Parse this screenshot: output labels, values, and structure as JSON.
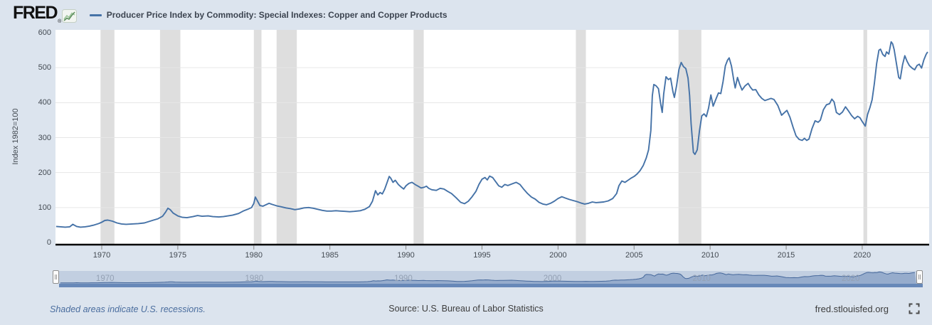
{
  "header": {
    "logo": "FRED",
    "reg": "®",
    "series_title": "Producer Price Index by Commodity: Special Indexes: Copper and Copper Products"
  },
  "footer": {
    "note": "Shaded areas indicate U.S. recessions.",
    "source": "Source: U.S. Bureau of Labor Statistics",
    "site": "fred.stlouisfed.org"
  },
  "slider": {
    "decade_labels": [
      "1970",
      "1980",
      "1990",
      "2000",
      "2010",
      "2020"
    ]
  },
  "colors": {
    "line": "#4572a7",
    "recession_band": "#dedede",
    "plot_background": "#ffffff",
    "page_background": "#dce4ee",
    "gridline": "#e6e6e6",
    "axis_line": "#000000",
    "tick": "#888888",
    "mini_area_fill": "#8ba3c7",
    "mini_line": "#46689b"
  },
  "chart_data": {
    "type": "line",
    "title": "Producer Price Index by Commodity: Special Indexes: Copper and Copper Products",
    "xlabel": "",
    "ylabel": "Index 1982=100",
    "xlim": [
      1966.96,
      2024.4
    ],
    "ylim": [
      0,
      600
    ],
    "y_ticks": [
      0,
      100,
      200,
      300,
      400,
      500,
      600
    ],
    "x_ticks": [
      1970,
      1975,
      1980,
      1985,
      1990,
      1995,
      2000,
      2005,
      2010,
      2015,
      2020
    ],
    "grid": "horizontal",
    "legend_position": "top-left",
    "recessions": [
      [
        1969.92,
        1970.83
      ],
      [
        1973.83,
        1975.17
      ],
      [
        1980.0,
        1980.5
      ],
      [
        1981.5,
        1982.83
      ],
      [
        1990.5,
        1991.17
      ],
      [
        2001.17,
        2001.83
      ],
      [
        2007.92,
        2009.42
      ],
      [
        2020.08,
        2020.33
      ]
    ],
    "series": [
      {
        "name": "Producer Price Index by Commodity: Special Indexes: Copper and Copper Products",
        "points": [
          [
            1967.0,
            46
          ],
          [
            1967.3,
            45
          ],
          [
            1967.6,
            44
          ],
          [
            1967.9,
            45
          ],
          [
            1968.1,
            52
          ],
          [
            1968.35,
            46
          ],
          [
            1968.6,
            44
          ],
          [
            1968.9,
            45
          ],
          [
            1969.2,
            47
          ],
          [
            1969.5,
            50
          ],
          [
            1969.8,
            54
          ],
          [
            1970.0,
            58
          ],
          [
            1970.2,
            63
          ],
          [
            1970.4,
            64
          ],
          [
            1970.7,
            61
          ],
          [
            1971.0,
            56
          ],
          [
            1971.3,
            53
          ],
          [
            1971.6,
            52
          ],
          [
            1972.0,
            53
          ],
          [
            1972.4,
            54
          ],
          [
            1972.8,
            56
          ],
          [
            1973.1,
            60
          ],
          [
            1973.4,
            64
          ],
          [
            1973.7,
            68
          ],
          [
            1974.0,
            75
          ],
          [
            1974.2,
            87
          ],
          [
            1974.35,
            98
          ],
          [
            1974.5,
            94
          ],
          [
            1974.7,
            84
          ],
          [
            1975.0,
            76
          ],
          [
            1975.3,
            72
          ],
          [
            1975.6,
            71
          ],
          [
            1976.0,
            74
          ],
          [
            1976.3,
            77
          ],
          [
            1976.6,
            75
          ],
          [
            1977.0,
            76
          ],
          [
            1977.3,
            74
          ],
          [
            1977.7,
            73
          ],
          [
            1978.0,
            74
          ],
          [
            1978.3,
            76
          ],
          [
            1978.6,
            78
          ],
          [
            1979.0,
            83
          ],
          [
            1979.3,
            90
          ],
          [
            1979.6,
            95
          ],
          [
            1979.85,
            100
          ],
          [
            1980.0,
            112
          ],
          [
            1980.1,
            130
          ],
          [
            1980.25,
            118
          ],
          [
            1980.4,
            106
          ],
          [
            1980.6,
            104
          ],
          [
            1980.8,
            108
          ],
          [
            1981.0,
            112
          ],
          [
            1981.2,
            109
          ],
          [
            1981.5,
            105
          ],
          [
            1981.8,
            102
          ],
          [
            1982.1,
            99
          ],
          [
            1982.4,
            97
          ],
          [
            1982.7,
            94
          ],
          [
            1983.0,
            96
          ],
          [
            1983.3,
            99
          ],
          [
            1983.6,
            100
          ],
          [
            1983.9,
            98
          ],
          [
            1984.2,
            95
          ],
          [
            1984.5,
            92
          ],
          [
            1984.8,
            90
          ],
          [
            1985.1,
            90
          ],
          [
            1985.4,
            91
          ],
          [
            1985.7,
            90
          ],
          [
            1986.0,
            89
          ],
          [
            1986.3,
            88
          ],
          [
            1986.6,
            89
          ],
          [
            1987.0,
            91
          ],
          [
            1987.3,
            95
          ],
          [
            1987.6,
            103
          ],
          [
            1987.8,
            118
          ],
          [
            1988.0,
            148
          ],
          [
            1988.15,
            136
          ],
          [
            1988.3,
            143
          ],
          [
            1988.45,
            139
          ],
          [
            1988.6,
            152
          ],
          [
            1988.75,
            170
          ],
          [
            1988.9,
            189
          ],
          [
            1989.0,
            184
          ],
          [
            1989.15,
            172
          ],
          [
            1989.3,
            178
          ],
          [
            1989.5,
            166
          ],
          [
            1989.7,
            158
          ],
          [
            1989.85,
            153
          ],
          [
            1990.0,
            162
          ],
          [
            1990.2,
            169
          ],
          [
            1990.4,
            172
          ],
          [
            1990.6,
            166
          ],
          [
            1990.8,
            161
          ],
          [
            1991.0,
            156
          ],
          [
            1991.2,
            158
          ],
          [
            1991.35,
            161
          ],
          [
            1991.5,
            155
          ],
          [
            1991.7,
            151
          ],
          [
            1992.0,
            149
          ],
          [
            1992.25,
            155
          ],
          [
            1992.5,
            153
          ],
          [
            1992.75,
            146
          ],
          [
            1993.0,
            140
          ],
          [
            1993.3,
            128
          ],
          [
            1993.6,
            115
          ],
          [
            1993.85,
            111
          ],
          [
            1994.1,
            118
          ],
          [
            1994.35,
            131
          ],
          [
            1994.6,
            146
          ],
          [
            1994.8,
            166
          ],
          [
            1995.0,
            181
          ],
          [
            1995.2,
            186
          ],
          [
            1995.35,
            179
          ],
          [
            1995.5,
            190
          ],
          [
            1995.7,
            186
          ],
          [
            1995.9,
            174
          ],
          [
            1996.1,
            162
          ],
          [
            1996.3,
            158
          ],
          [
            1996.5,
            166
          ],
          [
            1996.7,
            163
          ],
          [
            1997.0,
            168
          ],
          [
            1997.25,
            172
          ],
          [
            1997.5,
            166
          ],
          [
            1997.75,
            152
          ],
          [
            1998.0,
            140
          ],
          [
            1998.25,
            130
          ],
          [
            1998.5,
            124
          ],
          [
            1998.75,
            115
          ],
          [
            1999.0,
            110
          ],
          [
            1999.25,
            108
          ],
          [
            1999.5,
            112
          ],
          [
            1999.75,
            118
          ],
          [
            2000.0,
            126
          ],
          [
            2000.25,
            131
          ],
          [
            2000.5,
            127
          ],
          [
            2000.75,
            123
          ],
          [
            2001.0,
            120
          ],
          [
            2001.25,
            117
          ],
          [
            2001.5,
            113
          ],
          [
            2001.75,
            110
          ],
          [
            2002.0,
            112
          ],
          [
            2002.25,
            116
          ],
          [
            2002.5,
            114
          ],
          [
            2002.75,
            115
          ],
          [
            2003.0,
            116
          ],
          [
            2003.3,
            119
          ],
          [
            2003.6,
            126
          ],
          [
            2003.85,
            140
          ],
          [
            2004.0,
            162
          ],
          [
            2004.2,
            176
          ],
          [
            2004.4,
            172
          ],
          [
            2004.6,
            178
          ],
          [
            2004.8,
            184
          ],
          [
            2005.0,
            189
          ],
          [
            2005.2,
            196
          ],
          [
            2005.4,
            206
          ],
          [
            2005.6,
            220
          ],
          [
            2005.8,
            242
          ],
          [
            2005.95,
            265
          ],
          [
            2006.1,
            320
          ],
          [
            2006.2,
            420
          ],
          [
            2006.3,
            452
          ],
          [
            2006.45,
            448
          ],
          [
            2006.6,
            440
          ],
          [
            2006.75,
            396
          ],
          [
            2006.85,
            372
          ],
          [
            2006.95,
            425
          ],
          [
            2007.1,
            474
          ],
          [
            2007.25,
            466
          ],
          [
            2007.4,
            470
          ],
          [
            2007.55,
            432
          ],
          [
            2007.65,
            415
          ],
          [
            2007.8,
            450
          ],
          [
            2007.95,
            495
          ],
          [
            2008.1,
            515
          ],
          [
            2008.25,
            503
          ],
          [
            2008.4,
            498
          ],
          [
            2008.55,
            470
          ],
          [
            2008.65,
            420
          ],
          [
            2008.75,
            340
          ],
          [
            2008.9,
            258
          ],
          [
            2009.0,
            252
          ],
          [
            2009.15,
            265
          ],
          [
            2009.3,
            320
          ],
          [
            2009.45,
            362
          ],
          [
            2009.6,
            368
          ],
          [
            2009.75,
            360
          ],
          [
            2009.9,
            385
          ],
          [
            2010.05,
            422
          ],
          [
            2010.2,
            390
          ],
          [
            2010.4,
            412
          ],
          [
            2010.55,
            428
          ],
          [
            2010.7,
            426
          ],
          [
            2010.85,
            460
          ],
          [
            2011.0,
            505
          ],
          [
            2011.15,
            522
          ],
          [
            2011.25,
            528
          ],
          [
            2011.4,
            505
          ],
          [
            2011.55,
            465
          ],
          [
            2011.65,
            442
          ],
          [
            2011.8,
            472
          ],
          [
            2011.95,
            452
          ],
          [
            2012.1,
            436
          ],
          [
            2012.3,
            448
          ],
          [
            2012.5,
            455
          ],
          [
            2012.65,
            444
          ],
          [
            2012.8,
            436
          ],
          [
            2013.0,
            437
          ],
          [
            2013.2,
            422
          ],
          [
            2013.4,
            412
          ],
          [
            2013.6,
            406
          ],
          [
            2013.8,
            409
          ],
          [
            2014.0,
            412
          ],
          [
            2014.2,
            409
          ],
          [
            2014.45,
            392
          ],
          [
            2014.7,
            364
          ],
          [
            2014.9,
            372
          ],
          [
            2015.05,
            378
          ],
          [
            2015.25,
            358
          ],
          [
            2015.45,
            330
          ],
          [
            2015.65,
            305
          ],
          [
            2015.85,
            295
          ],
          [
            2016.05,
            292
          ],
          [
            2016.2,
            298
          ],
          [
            2016.35,
            292
          ],
          [
            2016.5,
            296
          ],
          [
            2016.7,
            326
          ],
          [
            2016.9,
            348
          ],
          [
            2017.1,
            344
          ],
          [
            2017.25,
            350
          ],
          [
            2017.45,
            380
          ],
          [
            2017.65,
            394
          ],
          [
            2017.85,
            397
          ],
          [
            2018.0,
            410
          ],
          [
            2018.15,
            402
          ],
          [
            2018.3,
            372
          ],
          [
            2018.5,
            366
          ],
          [
            2018.7,
            373
          ],
          [
            2018.9,
            388
          ],
          [
            2019.1,
            376
          ],
          [
            2019.3,
            363
          ],
          [
            2019.5,
            354
          ],
          [
            2019.7,
            361
          ],
          [
            2019.85,
            357
          ],
          [
            2020.0,
            346
          ],
          [
            2020.2,
            333
          ],
          [
            2020.35,
            366
          ],
          [
            2020.5,
            385
          ],
          [
            2020.65,
            408
          ],
          [
            2020.8,
            455
          ],
          [
            2020.95,
            512
          ],
          [
            2021.1,
            550
          ],
          [
            2021.2,
            553
          ],
          [
            2021.35,
            538
          ],
          [
            2021.5,
            532
          ],
          [
            2021.6,
            545
          ],
          [
            2021.75,
            539
          ],
          [
            2021.9,
            574
          ],
          [
            2022.0,
            568
          ],
          [
            2022.1,
            552
          ],
          [
            2022.25,
            512
          ],
          [
            2022.4,
            472
          ],
          [
            2022.5,
            468
          ],
          [
            2022.65,
            508
          ],
          [
            2022.8,
            534
          ],
          [
            2022.95,
            518
          ],
          [
            2023.1,
            506
          ],
          [
            2023.3,
            498
          ],
          [
            2023.45,
            494
          ],
          [
            2023.6,
            506
          ],
          [
            2023.75,
            510
          ],
          [
            2023.9,
            499
          ],
          [
            2024.05,
            522
          ],
          [
            2024.2,
            538
          ],
          [
            2024.3,
            545
          ]
        ]
      }
    ]
  }
}
